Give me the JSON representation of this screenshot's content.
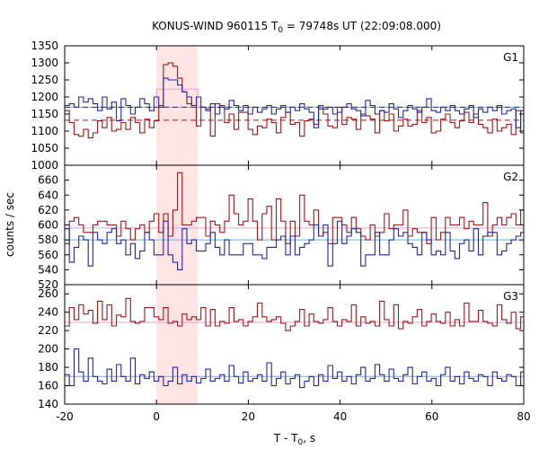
{
  "chart_data": {
    "type": "line",
    "title": "KONUS-WIND 960115 T",
    "title_sub": "0",
    "title_rest": " = 79748s UT (22:09:08.000)",
    "xlabel": "T - T",
    "xlabel_sub": "0",
    "xlabel_rest": ", s",
    "ylabel": "counts / sec",
    "xlim": [
      -20,
      80
    ],
    "xticks": [
      "-20",
      "0",
      "20",
      "40",
      "60",
      "80"
    ],
    "xtick_values": [
      -20,
      0,
      20,
      40,
      60,
      80
    ],
    "bin_width": 1.024,
    "highlight_band": [
      0,
      9
    ],
    "colors": {
      "red": "#a31515",
      "blue": "#2323a8",
      "light_blue": "#5fb8e8",
      "pink": "#f0a0c8",
      "band": "#ffe4e4"
    },
    "panels": [
      {
        "name": "G1",
        "ylim": [
          1000,
          1350
        ],
        "yticks": [
          "1000",
          "1050",
          "1100",
          "1150",
          "1200",
          "1250",
          "1300",
          "1350"
        ],
        "ytick_values": [
          1000,
          1050,
          1100,
          1150,
          1200,
          1250,
          1300,
          1350
        ],
        "blue_bg": 1170,
        "red_bg": 1132,
        "pink_box": [
          0,
          9,
          1223
        ],
        "red": [
          1160,
          1125,
          1090,
          1085,
          1105,
          1080,
          1095,
          1130,
          1110,
          1140,
          1100,
          1105,
          1125,
          1105,
          1140,
          1125,
          1095,
          1135,
          1110,
          1130,
          1175,
          1295,
          1300,
          1290,
          1255,
          1215,
          1180,
          1175,
          1115,
          1170,
          1165,
          1085,
          1180,
          1170,
          1125,
          1150,
          1105,
          1155,
          1155,
          1105,
          1090,
          1115,
          1110,
          1135,
          1125,
          1095,
          1140,
          1155,
          1120,
          1125,
          1085,
          1130,
          1135,
          1120,
          1165,
          1150,
          1115,
          1110,
          1170,
          1120,
          1140,
          1135,
          1105,
          1150,
          1145,
          1135,
          1095,
          1160,
          1130,
          1150,
          1100,
          1115,
          1135,
          1115,
          1120,
          1160,
          1125,
          1140,
          1095,
          1100,
          1135,
          1150,
          1125,
          1110,
          1130,
          1155,
          1125,
          1150,
          1120,
          1110,
          1095,
          1135,
          1100,
          1110,
          1120,
          1090,
          1160,
          1095,
          1150
        ],
        "blue": [
          1175,
          1180,
          1170,
          1200,
          1185,
          1195,
          1180,
          1160,
          1200,
          1165,
          1185,
          1130,
          1195,
          1175,
          1150,
          1170,
          1195,
          1180,
          1160,
          1200,
          1170,
          1255,
          1250,
          1250,
          1235,
          1215,
          1200,
          1175,
          1200,
          1170,
          1160,
          1180,
          1150,
          1175,
          1165,
          1190,
          1175,
          1160,
          1175,
          1150,
          1170,
          1155,
          1165,
          1175,
          1150,
          1165,
          1175,
          1155,
          1170,
          1160,
          1180,
          1165,
          1155,
          1110,
          1175,
          1165,
          1170,
          1150,
          1155,
          1170,
          1180,
          1165,
          1160,
          1145,
          1190,
          1175,
          1150,
          1160,
          1155,
          1180,
          1165,
          1140,
          1160,
          1175,
          1165,
          1155,
          1170,
          1195,
          1160,
          1155,
          1170,
          1160,
          1175,
          1160,
          1150,
          1165,
          1175,
          1140,
          1165,
          1155,
          1170,
          1160,
          1175,
          1150,
          1160,
          1165,
          1110,
          1160,
          1225
        ]
      },
      {
        "name": "G2",
        "ylim": [
          520,
          680
        ],
        "yticks": [
          "520",
          "540",
          "560",
          "580",
          "600",
          "620",
          "640",
          "660"
        ],
        "ytick_values": [
          520,
          540,
          560,
          580,
          600,
          620,
          640,
          660
        ],
        "blue_bg": 580,
        "red_bg": 596,
        "pink_box": null,
        "red": [
          575,
          605,
          610,
          600,
          590,
          590,
          600,
          605,
          605,
          600,
          600,
          585,
          605,
          595,
          580,
          595,
          600,
          590,
          605,
          615,
          590,
          615,
          585,
          620,
          670,
          600,
          600,
          605,
          610,
          610,
          585,
          605,
          600,
          590,
          605,
          640,
          615,
          600,
          605,
          635,
          605,
          580,
          615,
          625,
          580,
          635,
          605,
          575,
          605,
          585,
          640,
          605,
          600,
          620,
          585,
          590,
          575,
          610,
          610,
          600,
          590,
          610,
          595,
          585,
          580,
          600,
          585,
          590,
          615,
          595,
          600,
          600,
          620,
          585,
          595,
          590,
          590,
          575,
          610,
          580,
          590,
          610,
          600,
          600,
          610,
          595,
          605,
          600,
          600,
          630,
          585,
          600,
          610,
          600,
          610,
          615,
          600,
          620,
          605,
          610
        ],
        "blue": [
          595,
          550,
          570,
          585,
          580,
          545,
          590,
          580,
          575,
          590,
          595,
          575,
          580,
          560,
          575,
          555,
          565,
          590,
          580,
          560,
          560,
          605,
          560,
          550,
          540,
          595,
          575,
          580,
          565,
          565,
          575,
          590,
          570,
          560,
          580,
          560,
          560,
          560,
          575,
          575,
          560,
          560,
          555,
          570,
          570,
          580,
          585,
          560,
          585,
          560,
          570,
          575,
          580,
          600,
          585,
          600,
          545,
          575,
          605,
          575,
          585,
          595,
          590,
          545,
          560,
          560,
          590,
          560,
          560,
          580,
          595,
          585,
          590,
          575,
          570,
          560,
          590,
          580,
          560,
          565,
          560,
          590,
          565,
          555,
          575,
          580,
          565,
          595,
          560,
          585,
          590,
          590,
          560,
          565,
          575,
          580,
          585,
          590,
          565,
          595
        ]
      },
      {
        "name": "G3",
        "ylim": [
          140,
          270
        ],
        "yticks": [
          "140",
          "160",
          "180",
          "200",
          "220",
          "240",
          "260"
        ],
        "ytick_values": [
          140,
          160,
          180,
          200,
          220,
          240,
          260
        ],
        "blue_bg": 170,
        "red_bg": 229,
        "pink_box": null,
        "red": [
          225,
          245,
          232,
          248,
          238,
          242,
          228,
          252,
          232,
          248,
          225,
          237,
          235,
          255,
          230,
          228,
          230,
          245,
          245,
          235,
          232,
          245,
          228,
          230,
          225,
          238,
          232,
          235,
          232,
          245,
          225,
          243,
          225,
          230,
          228,
          245,
          230,
          232,
          225,
          230,
          235,
          250,
          235,
          230,
          232,
          235,
          228,
          220,
          225,
          230,
          243,
          225,
          238,
          230,
          228,
          232,
          245,
          230,
          225,
          232,
          230,
          248,
          225,
          235,
          228,
          230,
          225,
          252,
          232,
          225,
          248,
          222,
          230,
          228,
          235,
          243,
          225,
          230,
          238,
          230,
          228,
          240,
          225,
          232,
          225,
          250,
          230,
          230,
          242,
          230,
          228,
          225,
          248,
          232,
          228,
          240,
          222,
          235,
          248,
          230
        ],
        "blue": [
          172,
          160,
          200,
          175,
          165,
          190,
          170,
          165,
          162,
          178,
          165,
          183,
          170,
          165,
          190,
          162,
          172,
          168,
          175,
          165,
          170,
          160,
          165,
          180,
          162,
          172,
          165,
          170,
          163,
          168,
          178,
          165,
          168,
          172,
          165,
          182,
          170,
          163,
          175,
          165,
          168,
          172,
          165,
          185,
          160,
          168,
          175,
          162,
          168,
          172,
          158,
          165,
          170,
          160,
          172,
          165,
          182,
          168,
          175,
          165,
          170,
          162,
          172,
          180,
          165,
          168,
          183,
          172,
          165,
          178,
          168,
          165,
          172,
          180,
          162,
          170,
          175,
          165,
          168,
          160,
          172,
          180,
          165,
          170,
          162,
          175,
          168,
          165,
          172,
          170,
          160,
          175,
          168,
          165,
          172,
          170,
          160,
          175,
          165,
          160
        ]
      }
    ]
  }
}
